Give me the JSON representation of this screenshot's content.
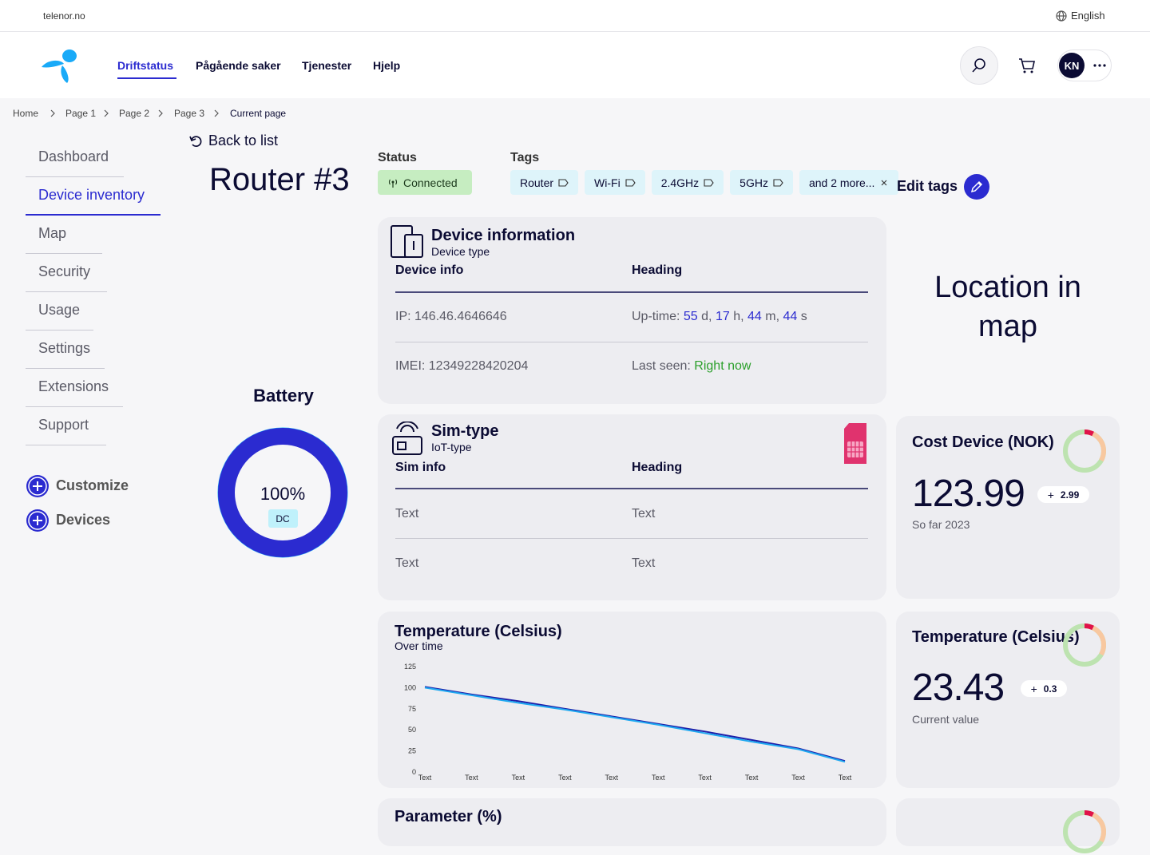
{
  "topbar": {
    "site": "telenor.no",
    "language": "English"
  },
  "nav": {
    "items": [
      "Driftstatus",
      "Pågående saker",
      "Tjenester",
      "Hjelp"
    ],
    "avatar": "KN"
  },
  "breadcrumb": [
    "Home",
    "Page 1",
    "Page 2",
    "Page 3",
    "Current page"
  ],
  "sidebar": {
    "items": [
      "Dashboard",
      "Device inventory",
      "Map",
      "Security",
      "Usage",
      "Settings",
      "Extensions",
      "Support"
    ],
    "actions": [
      "Customize",
      "Devices"
    ]
  },
  "back": "Back to list",
  "title": "Router #3",
  "status": {
    "label": "Status",
    "value": "Connected"
  },
  "tags": {
    "label": "Tags",
    "items": [
      "Router",
      "Wi-Fi",
      "2.4GHz",
      "5GHz",
      "and 2 more..."
    ],
    "edit": "Edit tags"
  },
  "battery": {
    "title": "Battery",
    "value": 100,
    "value_label": "100%",
    "unit": "DC"
  },
  "device_info": {
    "title": "Device information",
    "subtitle": "Device type",
    "columns": [
      "Device info",
      "Heading"
    ],
    "ip": "IP: 146.46.4646646",
    "imei": "IMEI: 12349228420204",
    "uptime": {
      "label": "Up-time:",
      "parts": [
        {
          "value": "55",
          "unit": "d,"
        },
        {
          "value": "17",
          "unit": "h,"
        },
        {
          "value": "44",
          "unit": "m,"
        },
        {
          "value": "44",
          "unit": "s"
        }
      ]
    },
    "last_seen": {
      "label": "Last seen:",
      "value": "Right now"
    }
  },
  "sim": {
    "title": "Sim-type",
    "subtitle": "IoT-type",
    "columns": [
      "Sim info",
      "Heading"
    ],
    "rows": [
      [
        "Text",
        "Text"
      ],
      [
        "Text",
        "Text"
      ]
    ]
  },
  "map": {
    "text": "Location in map"
  },
  "cost": {
    "title": "Cost Device (NOK)",
    "value": 123.99,
    "change": 2.99,
    "note": "So far 2023"
  },
  "temperature": {
    "title": "Temperature (Celsius)",
    "value": 23.43,
    "change": 0.3,
    "note": "Current value"
  },
  "temperature_chart": {
    "type": "line",
    "title": "Temperature (Celsius)",
    "subtitle": "Over time",
    "categories": [
      "Text",
      "Text",
      "Text",
      "Text",
      "Text",
      "Text",
      "Text",
      "Text",
      "Text",
      "Text"
    ],
    "series": [
      {
        "color": "#1e1ea8",
        "values": [
          101,
          92,
          84,
          75,
          66,
          57,
          48,
          38,
          28,
          13
        ]
      },
      {
        "color": "#1fa8f0",
        "values": [
          100,
          91,
          82,
          74,
          65,
          56,
          46,
          36,
          27,
          12
        ]
      }
    ],
    "ylim": [
      0,
      125
    ],
    "yticks": [
      0,
      25,
      50,
      75,
      100,
      125
    ],
    "grid": false
  },
  "parameter": {
    "title": "Parameter (%)"
  }
}
